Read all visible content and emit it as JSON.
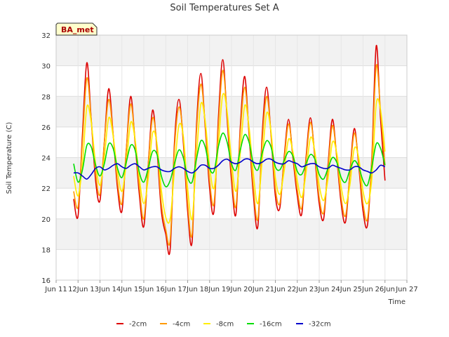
{
  "chart_data": {
    "type": "line",
    "title": "Soil Temperatures Set A",
    "xlabel": "Time",
    "ylabel": "Soil Temperature (C)",
    "badge": "BA_met",
    "ylim": [
      16,
      32
    ],
    "yticks": [
      16,
      18,
      20,
      22,
      24,
      26,
      28,
      30,
      32
    ],
    "xlim": [
      11.0,
      27.0
    ],
    "xticks": [
      {
        "v": 11,
        "label": "Jun 11"
      },
      {
        "v": 12,
        "label": "12Jun"
      },
      {
        "v": 13,
        "label": "13Jun"
      },
      {
        "v": 14,
        "label": "14Jun"
      },
      {
        "v": 15,
        "label": "15Jun"
      },
      {
        "v": 16,
        "label": "16Jun"
      },
      {
        "v": 17,
        "label": "17Jun"
      },
      {
        "v": 18,
        "label": "18Jun"
      },
      {
        "v": 19,
        "label": "19Jun"
      },
      {
        "v": 20,
        "label": "20Jun"
      },
      {
        "v": 21,
        "label": "21Jun"
      },
      {
        "v": 22,
        "label": "22Jun"
      },
      {
        "v": 23,
        "label": "23Jun"
      },
      {
        "v": 24,
        "label": "24Jun"
      },
      {
        "v": 25,
        "label": "25Jun"
      },
      {
        "v": 26,
        "label": "26Jun"
      },
      {
        "v": 27,
        "label": "Jun 27"
      }
    ],
    "x": [
      11.8,
      12.0,
      12.2,
      12.4,
      12.6,
      12.8,
      13.0,
      13.2,
      13.4,
      13.6,
      13.8,
      14.0,
      14.2,
      14.4,
      14.6,
      14.8,
      15.0,
      15.2,
      15.4,
      15.6,
      15.8,
      16.0,
      16.2,
      16.4,
      16.6,
      16.8,
      17.0,
      17.2,
      17.4,
      17.6,
      17.8,
      18.0,
      18.2,
      18.4,
      18.6,
      18.8,
      19.0,
      19.2,
      19.4,
      19.6,
      19.8,
      20.0,
      20.2,
      20.4,
      20.6,
      20.8,
      21.0,
      21.2,
      21.4,
      21.6,
      21.8,
      22.0,
      22.2,
      22.4,
      22.6,
      22.8,
      23.0,
      23.2,
      23.4,
      23.6,
      23.8,
      24.0,
      24.2,
      24.4,
      24.6,
      24.8,
      25.0,
      25.2,
      25.4,
      25.6,
      25.8,
      26.0
    ],
    "series": [
      {
        "name": "-2cm",
        "color": "#dd0000",
        "values": [
          21.3,
          20.2,
          25.5,
          30.2,
          26.5,
          22.5,
          21.2,
          25.0,
          28.5,
          25.5,
          22.0,
          20.5,
          24.5,
          28.0,
          25.0,
          21.5,
          19.5,
          23.5,
          27.1,
          24.5,
          20.5,
          19.0,
          18.0,
          25.0,
          27.8,
          25.0,
          20.5,
          18.5,
          26.0,
          29.5,
          26.0,
          22.0,
          20.5,
          26.5,
          30.4,
          26.5,
          22.5,
          20.3,
          26.0,
          29.3,
          25.5,
          21.5,
          19.5,
          25.5,
          28.6,
          25.5,
          21.5,
          20.7,
          24.0,
          26.5,
          24.0,
          21.5,
          20.3,
          24.0,
          26.6,
          24.0,
          21.0,
          20.0,
          23.5,
          26.5,
          24.0,
          21.0,
          19.8,
          23.0,
          25.9,
          23.5,
          20.5,
          19.6,
          24.0,
          31.3,
          26.5,
          22.5
        ]
      },
      {
        "name": "-4cm",
        "color": "#ff9900",
        "values": [
          21.8,
          20.8,
          25.0,
          29.2,
          26.5,
          23.0,
          21.6,
          25.0,
          27.8,
          25.5,
          22.4,
          21.0,
          24.5,
          27.5,
          25.2,
          22.0,
          20.0,
          23.5,
          26.6,
          24.8,
          21.0,
          19.3,
          18.6,
          24.6,
          27.3,
          25.3,
          21.0,
          19.0,
          25.6,
          28.8,
          26.2,
          22.5,
          21.0,
          26.0,
          29.7,
          26.8,
          23.0,
          20.8,
          25.6,
          28.6,
          25.7,
          22.0,
          20.0,
          25.0,
          28.0,
          25.6,
          22.0,
          21.0,
          23.8,
          26.2,
          24.2,
          21.9,
          20.7,
          23.8,
          26.3,
          24.2,
          21.4,
          20.4,
          23.3,
          26.1,
          24.1,
          21.4,
          20.2,
          22.9,
          25.6,
          23.7,
          21.0,
          20.0,
          23.8,
          30.0,
          27.0,
          23.5
        ]
      },
      {
        "name": "-8cm",
        "color": "#ffee00",
        "values": [
          22.8,
          21.5,
          23.5,
          27.3,
          26.3,
          23.6,
          22.2,
          24.0,
          26.6,
          25.4,
          23.1,
          21.8,
          23.6,
          26.3,
          25.2,
          22.6,
          21.0,
          22.6,
          25.6,
          24.9,
          21.9,
          20.1,
          20.0,
          23.2,
          26.1,
          25.4,
          22.0,
          20.0,
          24.0,
          27.5,
          26.4,
          23.4,
          22.0,
          24.8,
          28.1,
          27.0,
          23.8,
          21.8,
          24.3,
          27.4,
          26.0,
          22.9,
          21.0,
          23.8,
          26.9,
          25.7,
          22.7,
          21.6,
          23.1,
          25.2,
          24.4,
          22.5,
          21.4,
          23.0,
          25.3,
          24.4,
          22.2,
          21.2,
          22.6,
          25.0,
          24.3,
          22.1,
          21.0,
          22.2,
          24.6,
          24.0,
          21.8,
          21.0,
          22.6,
          27.5,
          27.1,
          24.4
        ]
      },
      {
        "name": "-16cm",
        "color": "#00dd00",
        "values": [
          23.6,
          22.4,
          23.2,
          24.8,
          24.7,
          23.5,
          22.8,
          23.6,
          24.9,
          24.6,
          23.3,
          22.7,
          23.7,
          24.8,
          24.5,
          23.0,
          22.4,
          23.3,
          24.4,
          24.2,
          22.8,
          22.1,
          22.5,
          23.6,
          24.5,
          24.0,
          22.7,
          22.4,
          23.9,
          25.1,
          24.7,
          23.3,
          23.1,
          24.7,
          25.6,
          25.0,
          23.6,
          23.2,
          24.5,
          25.5,
          25.0,
          23.6,
          23.2,
          24.3,
          25.1,
          24.7,
          23.4,
          23.2,
          23.8,
          24.4,
          24.1,
          23.1,
          22.9,
          23.6,
          24.2,
          23.9,
          22.9,
          22.6,
          23.3,
          24.0,
          23.7,
          22.7,
          22.4,
          23.2,
          23.8,
          23.4,
          22.5,
          22.2,
          23.4,
          24.9,
          24.6,
          23.5
        ]
      },
      {
        "name": "-32cm",
        "color": "#0000cc",
        "values": [
          23.0,
          23.0,
          22.8,
          22.6,
          22.9,
          23.3,
          23.4,
          23.2,
          23.3,
          23.5,
          23.6,
          23.4,
          23.3,
          23.5,
          23.6,
          23.4,
          23.2,
          23.3,
          23.4,
          23.4,
          23.2,
          23.1,
          23.1,
          23.3,
          23.4,
          23.3,
          23.1,
          23.0,
          23.2,
          23.5,
          23.5,
          23.3,
          23.3,
          23.5,
          23.8,
          23.9,
          23.7,
          23.6,
          23.7,
          23.9,
          23.9,
          23.7,
          23.6,
          23.7,
          23.9,
          23.9,
          23.7,
          23.6,
          23.6,
          23.8,
          23.7,
          23.6,
          23.4,
          23.5,
          23.6,
          23.6,
          23.4,
          23.3,
          23.3,
          23.5,
          23.4,
          23.3,
          23.2,
          23.2,
          23.4,
          23.4,
          23.2,
          23.1,
          23.0,
          23.2,
          23.5,
          23.4
        ]
      }
    ],
    "legend_position": "bottom-center",
    "grid": true
  }
}
